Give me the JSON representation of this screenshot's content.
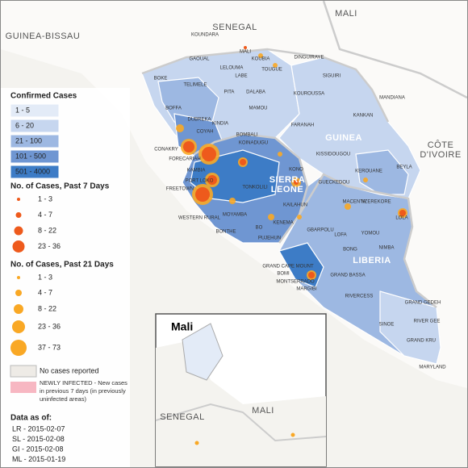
{
  "countries": [
    "MALI",
    "SENEGAL",
    "GUINEA-BISSAU",
    "GUINEA",
    "SIERRA LEONE",
    "LIBERIA",
    "CÔTE D'IVOIRE"
  ],
  "regions": [
    "KOUNDARA",
    "MALI",
    "KOUBIA",
    "DINGUIRAYE",
    "GAOUAL",
    "LELOUMA",
    "TOUGUE",
    "LABE",
    "SIGUIRI",
    "BOKE",
    "TELIMELE",
    "PITA",
    "DALABA",
    "KOUROUSSA",
    "MANDIANA",
    "MAMOU",
    "BOFFA",
    "DUBREKA",
    "KINDIA",
    "KANKAN",
    "FARANAH",
    "COYAH",
    "CONAKRY",
    "FORECARIAH",
    "KISSIDOUGOU",
    "KAMBIA",
    "PORT LOKO",
    "KOINADUGU",
    "BOMBALI",
    "KONO",
    "FREETOWN",
    "TONKOLILI",
    "WESTERN RURAL",
    "MOYAMBA",
    "KENEMA",
    "KAILAHUN",
    "GUECKEDOU",
    "KEROUANE",
    "BEYLA",
    "MACENTA",
    "NZEREKORE",
    "LOLA",
    "LOFA",
    "BONTHE",
    "BO",
    "PUJEHUN",
    "GBARPOLU",
    "YOMOU",
    "BONG",
    "NIMBA",
    "GRAND CAPE MOUNT",
    "BOMI",
    "MONTSERRADO",
    "MARGIBI",
    "GRAND BASSA",
    "RIVERCESS",
    "GRAND GEDEH",
    "SINOE",
    "RIVER GEE",
    "GRAND KRU",
    "MARYLAND"
  ],
  "legend": {
    "confirmed": {
      "title": "Confirmed Cases",
      "items": [
        {
          "label": "1 - 5",
          "color": "#e3ebf7"
        },
        {
          "label": "6 - 20",
          "color": "#c6d6ef"
        },
        {
          "label": "21 - 100",
          "color": "#9db8e2"
        },
        {
          "label": "101 - 500",
          "color": "#6f96d2"
        },
        {
          "label": "501 - 4000",
          "color": "#3d7cc6"
        }
      ]
    },
    "past7": {
      "title": "No. of Cases, Past 7 Days",
      "items": [
        "1 - 3",
        "4 - 7",
        "8 - 22",
        "23 - 36"
      ]
    },
    "past21": {
      "title": "No. of Cases, Past 21 Days",
      "items": [
        "1 - 3",
        "4 - 7",
        "8 - 22",
        "23 - 36",
        "37 - 73"
      ]
    },
    "no_cases": "No cases reported",
    "newly_infected": "NEWLY INFECTED - New cases in previous 7 days (in previously uninfected areas)"
  },
  "data_as_of": {
    "title": "Data as of:",
    "items": [
      "LR - 2015-02-07",
      "SL - 2015-02-08",
      "GI - 2015-02-08",
      "ML - 2015-01-19"
    ]
  },
  "inset": {
    "title": "Mali",
    "labels": [
      "SENEGAL",
      "MALI"
    ]
  }
}
